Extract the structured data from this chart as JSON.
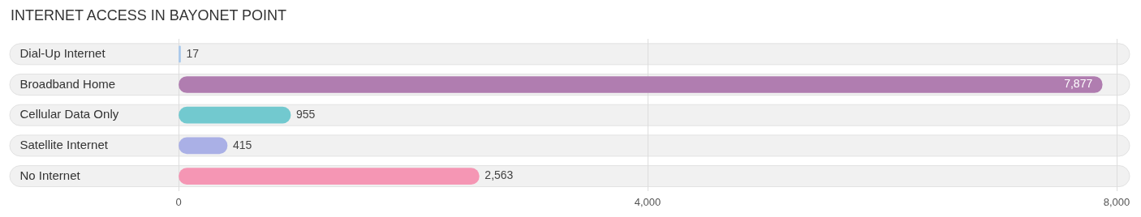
{
  "chart_data": {
    "type": "bar",
    "orientation": "horizontal",
    "title": "INTERNET ACCESS IN BAYONET POINT",
    "categories": [
      "Dial-Up Internet",
      "Broadband Home",
      "Cellular Data Only",
      "Satellite Internet",
      "No Internet"
    ],
    "values": [
      17,
      7877,
      955,
      415,
      2563
    ],
    "colors": [
      "#a8c8ec",
      "#b07db0",
      "#72c9cf",
      "#aab0e6",
      "#f596b4"
    ],
    "value_labels": [
      "17",
      "7,877",
      "955",
      "415",
      "2,563"
    ],
    "xlim": [
      0,
      8000
    ],
    "xticks": [
      0,
      {
        "value": 4000,
        "label": "4,000"
      },
      {
        "value": 8000,
        "label": "8,000"
      }
    ],
    "grid": "x",
    "legend": false
  }
}
